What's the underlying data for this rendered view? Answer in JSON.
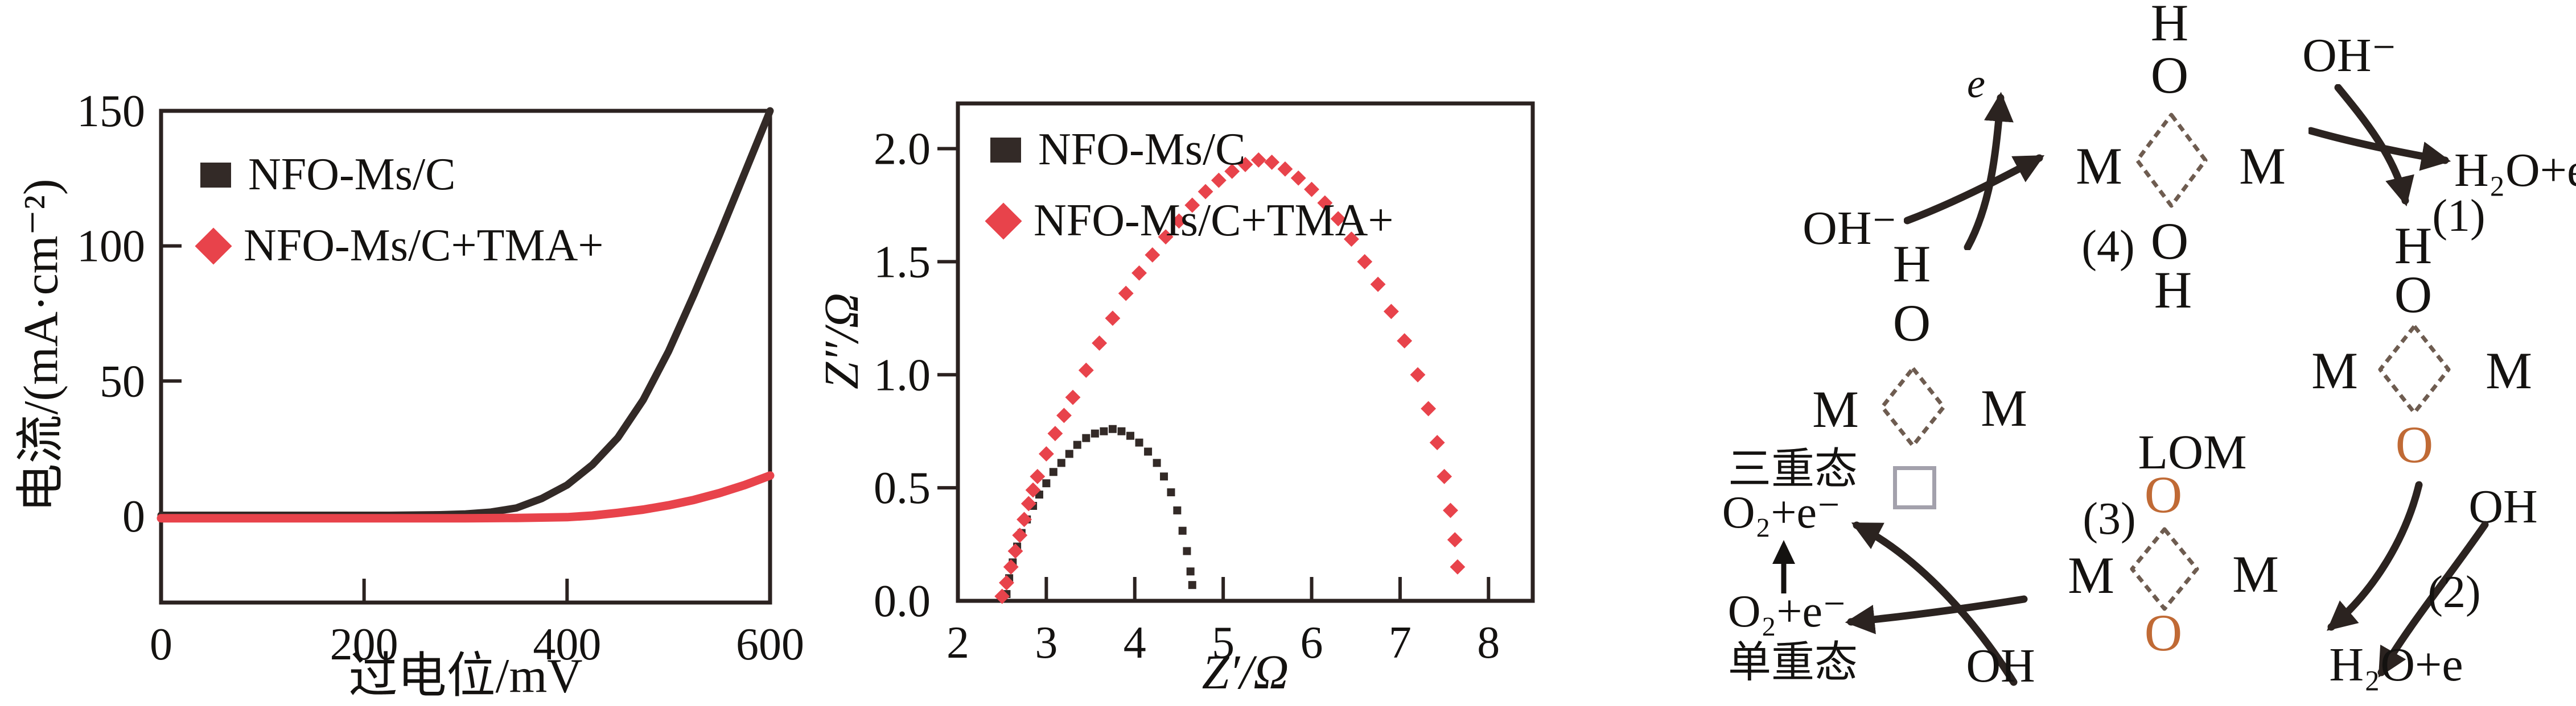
{
  "colors": {
    "frame": "#2b2220",
    "black_series": "#332a27",
    "red_series": "#e8434b",
    "lattice_oxygen": "#c06a35",
    "diamond_stroke": "#6e5c50",
    "vacancy_gray": "#a3a1ac",
    "arrow_black": "#2b2320",
    "text": "#141210"
  },
  "chart_data": [
    {
      "id": "polarization",
      "type": "line",
      "title": "",
      "xlabel": "过电位/mV",
      "ylabel": "电流/(mA·cm⁻²)",
      "xlim": [
        0,
        600
      ],
      "ylim": [
        -32,
        150
      ],
      "xticks": [
        0,
        200,
        400,
        600
      ],
      "yticks": [
        0,
        50,
        100,
        150
      ],
      "ytick_side": "inside",
      "grid": false,
      "legend_position": "top-left",
      "series": [
        {
          "name": "NFO-Ms/C",
          "color": "#332a27",
          "marker": "square",
          "line_width": 13,
          "points": [
            [
              0,
              0.3
            ],
            [
              25,
              0.3
            ],
            [
              50,
              0.3
            ],
            [
              75,
              0.3
            ],
            [
              100,
              0.3
            ],
            [
              125,
              0.3
            ],
            [
              150,
              0.3
            ],
            [
              175,
              0.3
            ],
            [
              200,
              0.3
            ],
            [
              225,
              0.3
            ],
            [
              250,
              0.4
            ],
            [
              275,
              0.5
            ],
            [
              300,
              0.8
            ],
            [
              325,
              1.5
            ],
            [
              350,
              3
            ],
            [
              375,
              6.5
            ],
            [
              400,
              11.5
            ],
            [
              425,
              19
            ],
            [
              450,
              29
            ],
            [
              475,
              43
            ],
            [
              500,
              61
            ],
            [
              525,
              82
            ],
            [
              550,
              104
            ],
            [
              575,
              127
            ],
            [
              600,
              150
            ]
          ]
        },
        {
          "name": "NFO-Ms/C+TMA+",
          "color": "#e8434b",
          "marker": "diamond",
          "line_width": 15,
          "points": [
            [
              0,
              -0.8
            ],
            [
              50,
              -0.8
            ],
            [
              100,
              -0.8
            ],
            [
              150,
              -0.8
            ],
            [
              200,
              -0.8
            ],
            [
              250,
              -0.8
            ],
            [
              300,
              -0.8
            ],
            [
              350,
              -0.7
            ],
            [
              400,
              -0.4
            ],
            [
              425,
              0.2
            ],
            [
              450,
              1.2
            ],
            [
              475,
              2.4
            ],
            [
              500,
              4
            ],
            [
              525,
              6
            ],
            [
              550,
              8.5
            ],
            [
              575,
              11.5
            ],
            [
              600,
              15
            ]
          ]
        }
      ]
    },
    {
      "id": "nyquist",
      "type": "scatter",
      "title": "",
      "xlabel": "Z′/Ω",
      "ylabel": "Z″/Ω",
      "xlim": [
        2,
        8.5
      ],
      "ylim": [
        0,
        2.2
      ],
      "xticks": [
        2,
        3,
        4,
        5,
        6,
        7,
        8
      ],
      "yticks": [
        0,
        0.5,
        1,
        1.5,
        2
      ],
      "ytick_labels": [
        "0.0",
        "0.5",
        "1.0",
        "1.5",
        "2.0"
      ],
      "ytick_side": "outside",
      "grid": false,
      "legend_position": "top-left",
      "series": [
        {
          "name": "NFO-Ms/C",
          "color": "#332a27",
          "marker": "square",
          "marker_size": 14,
          "points": [
            [
              2.55,
              0.03
            ],
            [
              2.58,
              0.1
            ],
            [
              2.62,
              0.17
            ],
            [
              2.67,
              0.24
            ],
            [
              2.72,
              0.3
            ],
            [
              2.78,
              0.36
            ],
            [
              2.85,
              0.42
            ],
            [
              2.92,
              0.47
            ],
            [
              3.0,
              0.52
            ],
            [
              3.08,
              0.57
            ],
            [
              3.17,
              0.61
            ],
            [
              3.26,
              0.65
            ],
            [
              3.35,
              0.69
            ],
            [
              3.45,
              0.72
            ],
            [
              3.55,
              0.74
            ],
            [
              3.65,
              0.75
            ],
            [
              3.75,
              0.76
            ],
            [
              3.85,
              0.75
            ],
            [
              3.95,
              0.73
            ],
            [
              4.05,
              0.7
            ],
            [
              4.15,
              0.66
            ],
            [
              4.25,
              0.61
            ],
            [
              4.33,
              0.55
            ],
            [
              4.41,
              0.48
            ],
            [
              4.48,
              0.4
            ],
            [
              4.54,
              0.31
            ],
            [
              4.59,
              0.22
            ],
            [
              4.63,
              0.13
            ],
            [
              4.65,
              0.07
            ]
          ]
        },
        {
          "name": "NFO-Ms/C+TMA+",
          "color": "#e8434b",
          "marker": "diamond",
          "marker_size": 19,
          "points": [
            [
              2.5,
              0.02
            ],
            [
              2.55,
              0.08
            ],
            [
              2.6,
              0.15
            ],
            [
              2.65,
              0.22
            ],
            [
              2.7,
              0.29
            ],
            [
              2.75,
              0.36
            ],
            [
              2.8,
              0.43
            ],
            [
              2.85,
              0.49
            ],
            [
              2.9,
              0.55
            ],
            [
              3.0,
              0.65
            ],
            [
              3.1,
              0.74
            ],
            [
              3.2,
              0.82
            ],
            [
              3.3,
              0.9
            ],
            [
              3.45,
              1.02
            ],
            [
              3.6,
              1.14
            ],
            [
              3.75,
              1.25
            ],
            [
              3.9,
              1.36
            ],
            [
              4.05,
              1.45
            ],
            [
              4.2,
              1.53
            ],
            [
              4.35,
              1.61
            ],
            [
              4.5,
              1.68
            ],
            [
              4.65,
              1.75
            ],
            [
              4.8,
              1.81
            ],
            [
              4.95,
              1.86
            ],
            [
              5.1,
              1.9
            ],
            [
              5.25,
              1.93
            ],
            [
              5.4,
              1.95
            ],
            [
              5.55,
              1.94
            ],
            [
              5.7,
              1.91
            ],
            [
              5.85,
              1.87
            ],
            [
              6.0,
              1.82
            ],
            [
              6.15,
              1.76
            ],
            [
              6.3,
              1.69
            ],
            [
              6.45,
              1.6
            ],
            [
              6.6,
              1.5
            ],
            [
              6.75,
              1.4
            ],
            [
              6.9,
              1.28
            ],
            [
              7.05,
              1.15
            ],
            [
              7.2,
              1.0
            ],
            [
              7.32,
              0.85
            ],
            [
              7.42,
              0.7
            ],
            [
              7.5,
              0.55
            ],
            [
              7.57,
              0.4
            ],
            [
              7.62,
              0.27
            ],
            [
              7.65,
              0.15
            ]
          ]
        }
      ]
    }
  ],
  "diagram": {
    "center_label": "LOM",
    "metal": "M",
    "electron": "e",
    "sites": {
      "top": {
        "step_label": "(4)",
        "above": [
          "H",
          "O"
        ],
        "below": [
          "O",
          "H"
        ]
      },
      "right": {
        "above": [
          "H",
          "O"
        ],
        "below_oxygen": "O"
      },
      "bottom": {
        "step_label": "(3)",
        "above_oxygen": "O",
        "below_oxygen": "O"
      },
      "left": {
        "above": [
          "H",
          "O"
        ]
      }
    },
    "reactions": {
      "top_left": {
        "species_in": "OH⁻"
      },
      "top_right": {
        "step_label": "(1)",
        "species_in": "OH⁻",
        "species_out": "H₂O+e"
      },
      "bottom_right": {
        "step_label": "(2)",
        "species_in": "OH",
        "species_out": "H₂O+e"
      },
      "bottom_left": {
        "species": "OH"
      }
    },
    "spin_note": {
      "triplet": "三重态",
      "o2e_top": "O₂+e⁻",
      "o2e_bottom": "O₂+e⁻",
      "singlet": "单重态"
    }
  }
}
